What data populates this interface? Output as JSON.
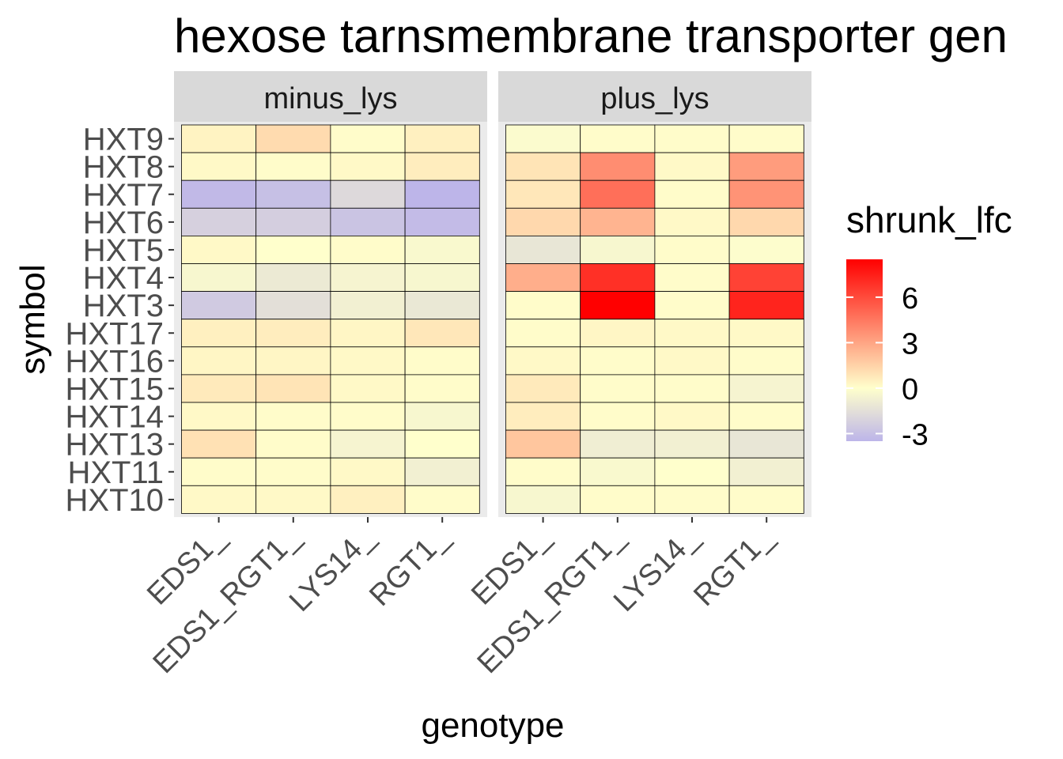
{
  "chart_data": {
    "type": "heatmap",
    "title": "hexose tarnsmembrane transporter gen",
    "xlabel": "genotype",
    "ylabel": "symbol",
    "legend": {
      "title": "shrunk_lfc",
      "ticks": [
        6,
        3,
        0,
        -3
      ],
      "range": [
        -3.5,
        8.5
      ],
      "placement": "right",
      "colors": {
        "low": "#bdb5e9",
        "mid": "#ffffcc",
        "high": "#ff0000"
      }
    },
    "panels": [
      "minus_lys",
      "plus_lys"
    ],
    "categories": [
      "EDS1_",
      "EDS1_RGT1_",
      "LYS14_",
      "RGT1_"
    ],
    "rows": [
      "HXT9",
      "HXT8",
      "HXT7",
      "HXT6",
      "HXT5",
      "HXT4",
      "HXT3",
      "HXT17",
      "HXT16",
      "HXT15",
      "HXT14",
      "HXT13",
      "HXT11",
      "HXT10"
    ],
    "values": {
      "minus_lys": [
        [
          0.4,
          1.2,
          0.1,
          0.5
        ],
        [
          0.2,
          0.1,
          0.2,
          0.6
        ],
        [
          -3.3,
          -3.0,
          -1.8,
          -3.5
        ],
        [
          -2.2,
          -2.3,
          -2.8,
          -3.2
        ],
        [
          0.2,
          0.0,
          0.1,
          -0.3
        ],
        [
          -0.4,
          -1.0,
          -0.5,
          -0.4
        ],
        [
          -2.5,
          -1.5,
          -0.7,
          -1.1
        ],
        [
          0.5,
          0.6,
          0.3,
          0.8
        ],
        [
          0.3,
          0.3,
          0.2,
          0.1
        ],
        [
          0.7,
          0.9,
          0.2,
          0.1
        ],
        [
          0.2,
          0.1,
          0.1,
          -0.4
        ],
        [
          1.0,
          0.1,
          -0.5,
          0.0
        ],
        [
          0.1,
          0.1,
          0.2,
          -0.7
        ],
        [
          0.2,
          0.2,
          0.5,
          0.1
        ]
      ],
      "plus_lys": [
        [
          -0.2,
          0.1,
          0.1,
          0.1
        ],
        [
          0.9,
          3.8,
          0.2,
          3.3
        ],
        [
          0.8,
          4.8,
          0.1,
          3.6
        ],
        [
          1.3,
          2.5,
          0.2,
          1.3
        ],
        [
          -1.2,
          -0.4,
          0.1,
          -0.1
        ],
        [
          2.7,
          6.9,
          0.1,
          6.3
        ],
        [
          0.1,
          8.5,
          0.1,
          7.3
        ],
        [
          0.1,
          0.3,
          0.2,
          0.2
        ],
        [
          0.2,
          0.1,
          0.2,
          0.1
        ],
        [
          0.7,
          0.1,
          0.1,
          -0.5
        ],
        [
          0.6,
          0.1,
          0.2,
          0.1
        ],
        [
          1.9,
          -0.8,
          -0.7,
          -1.2
        ],
        [
          0.1,
          -0.3,
          0.0,
          -0.7
        ],
        [
          -0.4,
          0.1,
          0.1,
          0.1
        ]
      ]
    }
  }
}
